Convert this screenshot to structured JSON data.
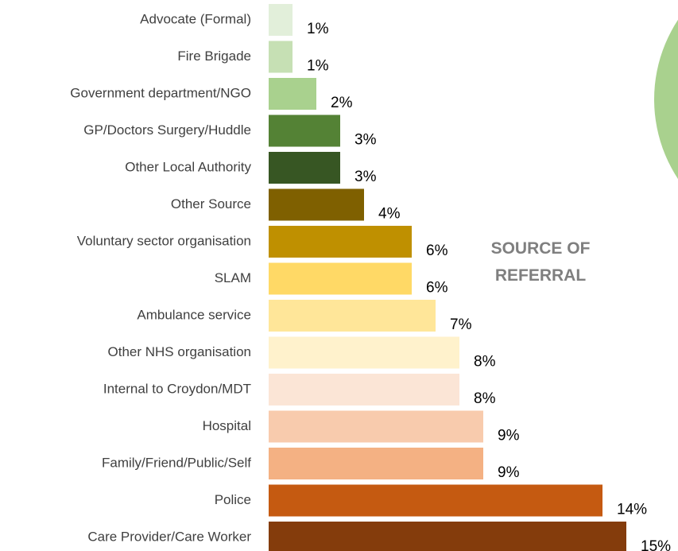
{
  "chart_data": {
    "type": "bar",
    "orientation": "horizontal",
    "title": "SOURCE OF REFERRAL",
    "categories": [
      "Advocate (Formal)",
      "Fire Brigade",
      "Government department/NGO",
      "GP/Doctors Surgery/Huddle",
      "Other Local Authority",
      "Other Source",
      "Voluntary sector organisation",
      "SLAM",
      "Ambulance service",
      "Other NHS organisation",
      "Internal to Croydon/MDT",
      "Hospital",
      "Family/Friend/Public/Self",
      "Police",
      "Care Provider/Care Worker"
    ],
    "values": [
      1,
      1,
      2,
      3,
      3,
      4,
      6,
      6,
      7,
      8,
      8,
      9,
      9,
      14,
      15
    ],
    "value_labels": [
      "1%",
      "1%",
      "2%",
      "3%",
      "3%",
      "4%",
      "6%",
      "6%",
      "7%",
      "8%",
      "8%",
      "9%",
      "9%",
      "14%",
      "15%"
    ],
    "colors": [
      "#e2efda",
      "#c6e0b4",
      "#a9d18e",
      "#548235",
      "#375623",
      "#7f6000",
      "#bf9000",
      "#ffd966",
      "#ffe699",
      "#fff2cc",
      "#fbe5d6",
      "#f8cbad",
      "#f4b183",
      "#c55a11",
      "#843c0c"
    ]
  }
}
